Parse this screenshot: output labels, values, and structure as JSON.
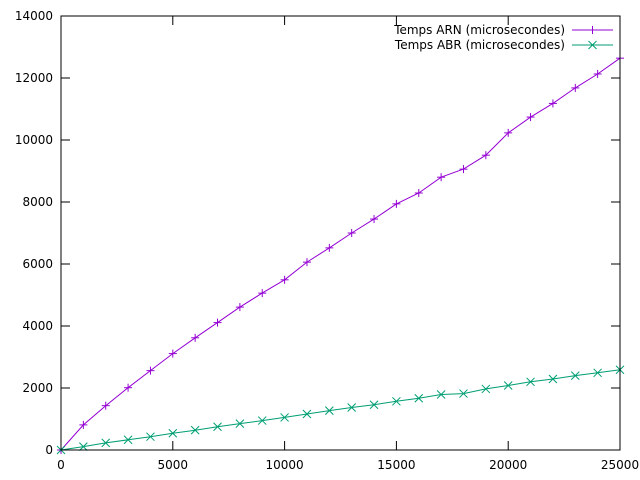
{
  "chart_data": {
    "type": "line",
    "title": "",
    "xlabel": "",
    "ylabel": "",
    "xlim": [
      0,
      25000
    ],
    "ylim": [
      0,
      14000
    ],
    "xticks": [
      0,
      5000,
      10000,
      15000,
      20000,
      25000
    ],
    "yticks": [
      0,
      2000,
      4000,
      6000,
      8000,
      10000,
      12000,
      14000
    ],
    "grid": false,
    "legend_position": "top-right",
    "x": [
      0,
      1000,
      2000,
      3000,
      4000,
      5000,
      6000,
      7000,
      8000,
      9000,
      10000,
      11000,
      12000,
      13000,
      14000,
      15000,
      16000,
      17000,
      18000,
      19000,
      20000,
      21000,
      22000,
      23000,
      24000,
      25000
    ],
    "series": [
      {
        "name": "Temps ARN (microsecondes)",
        "color": "#9400d3",
        "marker": "plus",
        "values": [
          0,
          810,
          1430,
          2010,
          2560,
          3110,
          3620,
          4110,
          4610,
          5060,
          5490,
          6060,
          6520,
          7000,
          7450,
          7940,
          8290,
          8800,
          9060,
          9510,
          10230,
          10740,
          11180,
          11680,
          12130,
          12640
        ]
      },
      {
        "name": "Temps ABR (microsecondes)",
        "color": "#009e73",
        "marker": "cross",
        "values": [
          0,
          110,
          230,
          330,
          430,
          540,
          640,
          750,
          850,
          950,
          1050,
          1160,
          1270,
          1370,
          1460,
          1570,
          1670,
          1790,
          1820,
          1970,
          2080,
          2200,
          2290,
          2400,
          2490,
          2590
        ]
      }
    ]
  }
}
